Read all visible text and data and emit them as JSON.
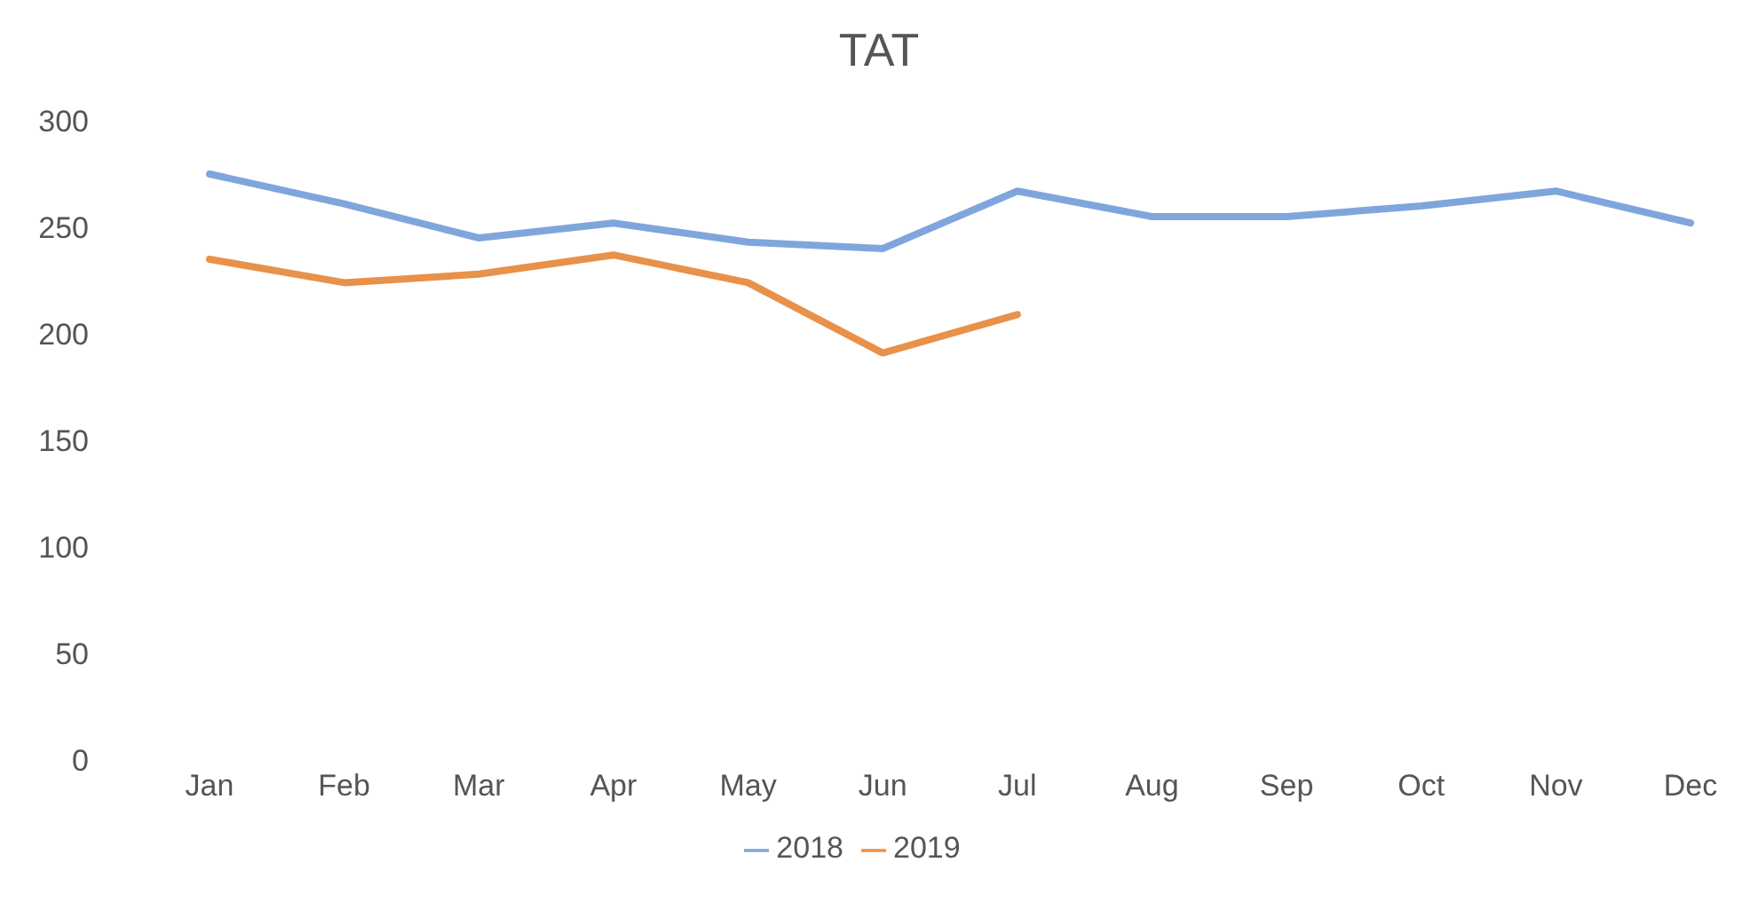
{
  "chart_data": {
    "type": "line",
    "title": "TAT",
    "categories": [
      "Jan",
      "Feb",
      "Mar",
      "Apr",
      "May",
      "Jun",
      "Jul",
      "Aug",
      "Sep",
      "Oct",
      "Nov",
      "Dec"
    ],
    "series": [
      {
        "name": "2018",
        "color": "#7fa6dc",
        "values": [
          275,
          261,
          245,
          252,
          243,
          240,
          267,
          255,
          255,
          260,
          267,
          252
        ]
      },
      {
        "name": "2019",
        "color": "#e8914a",
        "values": [
          235,
          224,
          228,
          237,
          224,
          191,
          209,
          null,
          null,
          null,
          null,
          null
        ]
      }
    ],
    "ylim": [
      0,
      300
    ],
    "yticks": [
      0,
      50,
      100,
      150,
      200,
      250,
      300
    ],
    "grid": false,
    "legend": "bottom",
    "marker": "none",
    "line_style": "solid"
  }
}
